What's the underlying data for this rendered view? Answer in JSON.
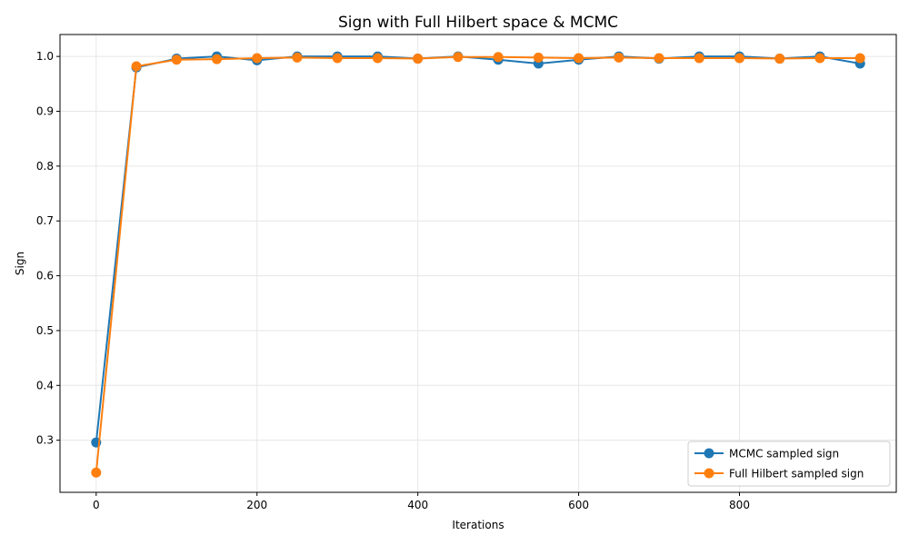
{
  "chart_data": {
    "type": "line",
    "title": "Sign with Full Hilbert space & MCMC",
    "xlabel": "Iterations",
    "ylabel": "Sign",
    "xlim": [
      -45,
      995
    ],
    "ylim": [
      0.205,
      1.04
    ],
    "xticks": [
      0,
      200,
      400,
      600,
      800
    ],
    "yticks": [
      0.3,
      0.4,
      0.5,
      0.6,
      0.7,
      0.8,
      0.9,
      1.0
    ],
    "grid": true,
    "legend_position": "lower-right",
    "x": [
      0,
      50,
      100,
      150,
      200,
      250,
      300,
      350,
      400,
      450,
      500,
      550,
      600,
      650,
      700,
      750,
      800,
      850,
      900,
      950
    ],
    "series": [
      {
        "name": "MCMC sampled sign",
        "color": "#1f77b4",
        "marker": "circle",
        "values": [
          0.296,
          0.98,
          0.996,
          1.0,
          0.993,
          1.0,
          1.0,
          1.0,
          0.996,
          1.0,
          0.994,
          0.987,
          0.994,
          1.0,
          0.996,
          1.0,
          1.0,
          0.996,
          1.0,
          0.987
        ]
      },
      {
        "name": "Full Hilbert sampled sign",
        "color": "#ff7f0e",
        "marker": "circle",
        "values": [
          0.241,
          0.982,
          0.994,
          0.995,
          0.997,
          0.998,
          0.997,
          0.997,
          0.996,
          0.999,
          0.999,
          0.998,
          0.997,
          0.998,
          0.997,
          0.997,
          0.997,
          0.996,
          0.997,
          0.997
        ]
      }
    ]
  }
}
